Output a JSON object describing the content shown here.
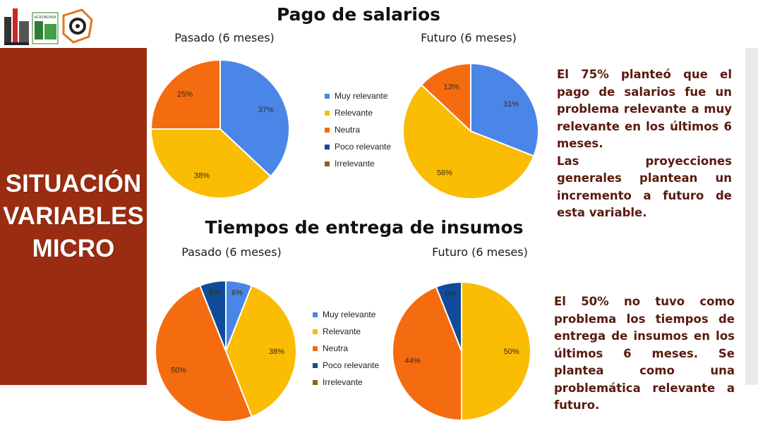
{
  "colors": {
    "muy_relevante": "#4a86e8",
    "relevante": "#fbbc04",
    "neutra": "#f46c0f",
    "poco_relevante": "#104c9a",
    "irrelevante": "#8a6314",
    "side_panel": "#9a2d11",
    "note_text": "#5a1a0e"
  },
  "logos": {
    "items": [
      {
        "name": "institution-logo-icon"
      },
      {
        "name": "acronomia-logo-icon",
        "text": "ACRONOMIA"
      },
      {
        "name": "tire-region-logo-icon"
      }
    ]
  },
  "side_panel": {
    "lines": [
      "SITUACIÓN",
      "VARIABLES",
      "MICRO"
    ]
  },
  "legend": [
    {
      "label": "Muy relevante",
      "key": "muy_relevante"
    },
    {
      "label": "Relevante",
      "key": "relevante"
    },
    {
      "label": "Neutra",
      "key": "neutra"
    },
    {
      "label": "Poco relevante",
      "key": "poco_relevante"
    },
    {
      "label": "Irrelevante",
      "key": "irrelevante"
    }
  ],
  "sections": [
    {
      "title": "Pago de salarios",
      "note": [
        "El 75% planteó que el pago de salarios fue un problema relevante a muy relevante en los últimos 6 meses.",
        "Las proyecciones generales plantean un incremento a futuro de esta variable."
      ]
    },
    {
      "title": "Tiempos de entrega de insumos",
      "note": [
        "El 50% no tuvo como problema los tiempos de entrega de insumos en los últimos 6 meses. Se plantea como una problemática relevante a futuro."
      ]
    }
  ],
  "chart_data": [
    {
      "type": "pie",
      "title": "Pasado (6 meses)",
      "group": "Pago de salarios",
      "categories": [
        "Muy relevante",
        "Relevante",
        "Neutra",
        "Poco relevante",
        "Irrelevante"
      ],
      "values": [
        37,
        38,
        25,
        0,
        0
      ],
      "labels": [
        "37%",
        "38%",
        "25%",
        "",
        ""
      ]
    },
    {
      "type": "pie",
      "title": "Futuro (6 meses)",
      "group": "Pago de salarios",
      "categories": [
        "Muy relevante",
        "Relevante",
        "Neutra",
        "Poco relevante",
        "Irrelevante"
      ],
      "values": [
        31,
        56,
        13,
        0,
        0
      ],
      "labels": [
        "31%",
        "56%",
        "13%",
        "",
        ""
      ]
    },
    {
      "type": "pie",
      "title": "Pasado (6 meses)",
      "group": "Tiempos de entrega de insumos",
      "categories": [
        "Muy relevante",
        "Relevante",
        "Neutra",
        "Poco relevante",
        "Irrelevante"
      ],
      "values": [
        6,
        38,
        50,
        6,
        0
      ],
      "labels": [
        "6%",
        "38%",
        "50%",
        "6%",
        ""
      ]
    },
    {
      "type": "pie",
      "title": "Futuro (6 meses)",
      "group": "Tiempos de entrega de insumos",
      "categories": [
        "Muy relevante",
        "Relevante",
        "Neutra",
        "Poco relevante",
        "Irrelevante"
      ],
      "values": [
        0,
        50,
        44,
        6,
        0
      ],
      "labels": [
        "",
        "50%",
        "44%",
        "6%",
        ""
      ]
    }
  ]
}
